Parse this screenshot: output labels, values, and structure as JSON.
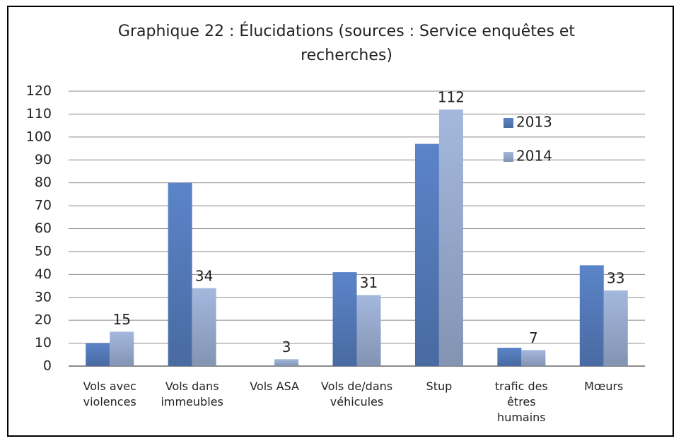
{
  "chart_data": {
    "type": "bar",
    "title": "Graphique 22 : Élucidations (sources : Service enquêtes et recherches)",
    "categories": [
      "Vols avec violences",
      "Vols dans immeubles",
      "Vols ASA",
      "Vols de/dans véhicules",
      "Stup",
      "trafic des êtres humains",
      "Mœurs"
    ],
    "series": [
      {
        "name": "2013",
        "color": "#5b84c9",
        "values": [
          10,
          80,
          0,
          41,
          97,
          8,
          44
        ],
        "show_labels": false
      },
      {
        "name": "2014",
        "color": "#a4b8de",
        "values": [
          15,
          34,
          3,
          31,
          112,
          7,
          33
        ],
        "show_labels": true
      }
    ],
    "ylim": [
      0,
      120
    ],
    "yticks": [
      0,
      10,
      20,
      30,
      40,
      50,
      60,
      70,
      80,
      90,
      100,
      110,
      120
    ],
    "grid": true,
    "legend": "top-right"
  }
}
